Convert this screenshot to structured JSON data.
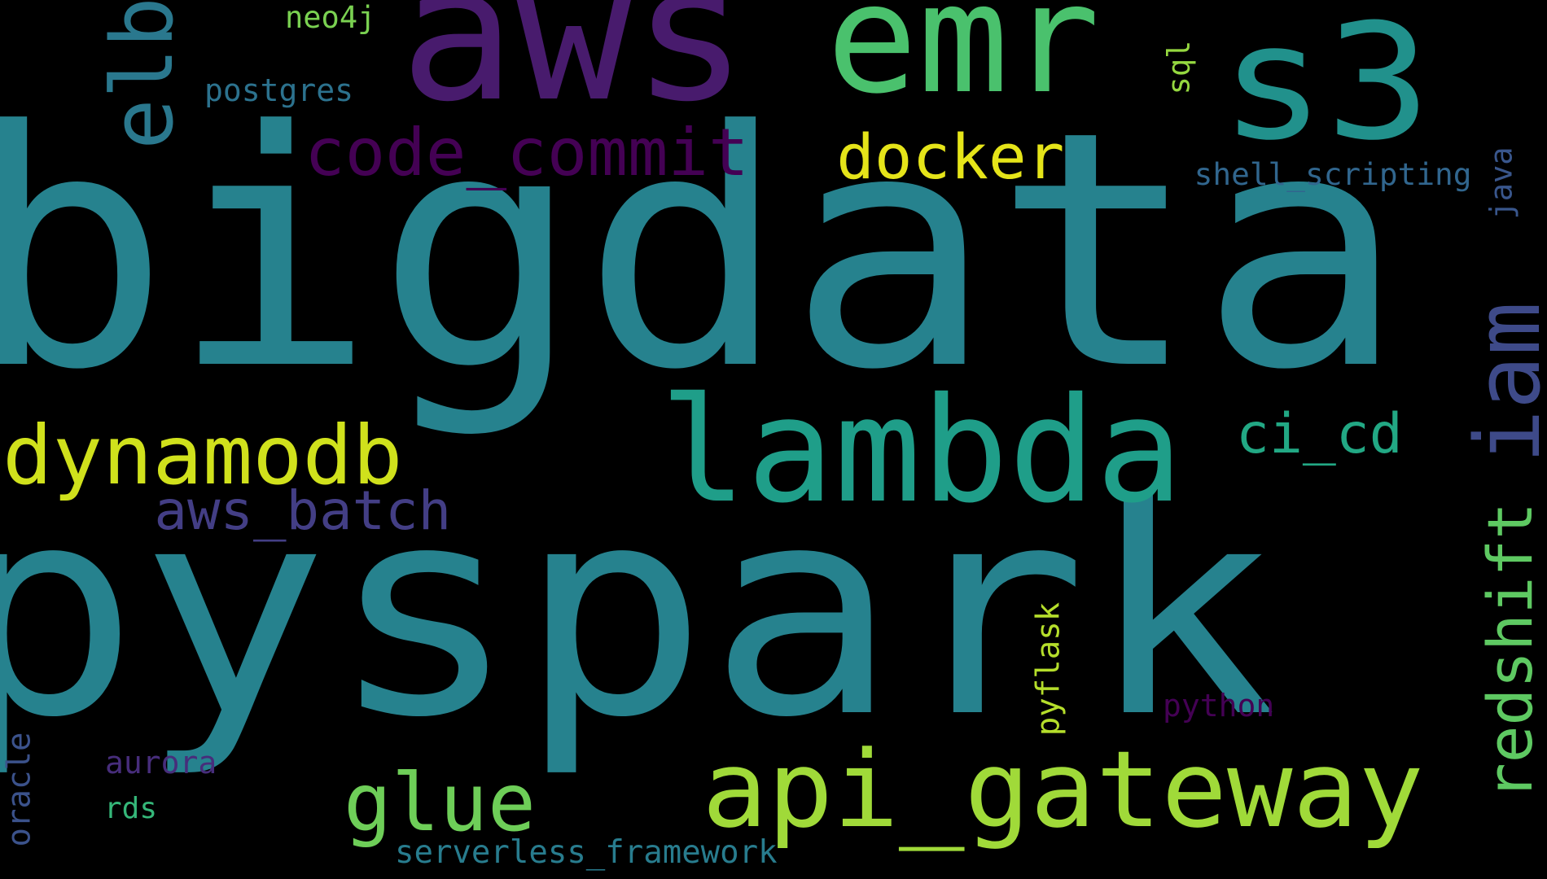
{
  "background": "#000000",
  "words": [
    {
      "id": "bigdata",
      "text": "bigdata",
      "color": "#26828e"
    },
    {
      "id": "pyspark",
      "text": "pyspark",
      "color": "#26828e"
    },
    {
      "id": "aws",
      "text": "aws",
      "color": "#481b6d"
    },
    {
      "id": "emr",
      "text": "emr",
      "color": "#4ac16d"
    },
    {
      "id": "s3",
      "text": "s3",
      "color": "#21918c"
    },
    {
      "id": "lambda",
      "text": "lambda",
      "color": "#1f9e89"
    },
    {
      "id": "api_gateway",
      "text": "api_gateway",
      "color": "#a0da39"
    },
    {
      "id": "dynamodb",
      "text": "dynamodb",
      "color": "#d0e11c"
    },
    {
      "id": "glue",
      "text": "glue",
      "color": "#6ece58"
    },
    {
      "id": "code_commit",
      "text": "code_commit",
      "color": "#440154"
    },
    {
      "id": "docker",
      "text": "docker",
      "color": "#e5e419"
    },
    {
      "id": "elb",
      "text": "elb",
      "color": "#2a788e"
    },
    {
      "id": "iam",
      "text": "iam",
      "color": "#3e4a89"
    },
    {
      "id": "redshift",
      "text": "redshift",
      "color": "#5ec962"
    },
    {
      "id": "ci_cd",
      "text": "ci_cd",
      "color": "#22a884"
    },
    {
      "id": "aws_batch",
      "text": "aws_batch",
      "color": "#433e85"
    },
    {
      "id": "shell_scripting",
      "text": "shell_scripting",
      "color": "#31668e"
    },
    {
      "id": "postgres",
      "text": "postgres",
      "color": "#2c728e"
    },
    {
      "id": "neo4j",
      "text": "neo4j",
      "color": "#7ad151"
    },
    {
      "id": "sql",
      "text": "sql",
      "color": "#95d840"
    },
    {
      "id": "java",
      "text": "java",
      "color": "#39568c"
    },
    {
      "id": "pyflask",
      "text": "pyflask",
      "color": "#b5de2b"
    },
    {
      "id": "python",
      "text": "python",
      "color": "#440154"
    },
    {
      "id": "aurora",
      "text": "aurora",
      "color": "#472d7b"
    },
    {
      "id": "rds",
      "text": "rds",
      "color": "#35b779"
    },
    {
      "id": "oracle",
      "text": "oracle",
      "color": "#3b528b"
    },
    {
      "id": "serverless_framework",
      "text": "serverless_framework",
      "color": "#287c8e"
    }
  ]
}
